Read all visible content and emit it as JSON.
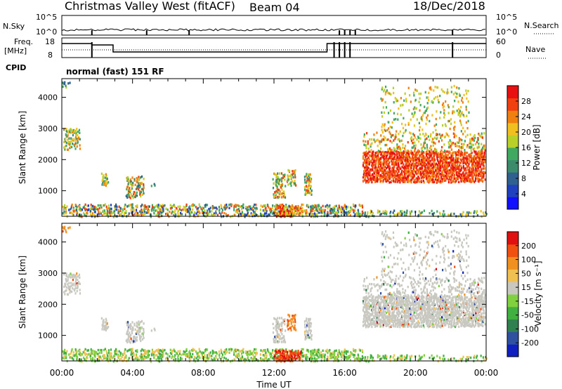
{
  "header": {
    "title": "Christmas Valley West (fitACF)",
    "beam": "Beam 04",
    "date": "18/Dec/2018"
  },
  "top_panels": {
    "nsky_label": "N.Sky",
    "nsearch_label": "N.Search",
    "nsky_ticks": [
      "10^5",
      "10^0"
    ],
    "nsearch_ticks": [
      "10^5",
      "10^0"
    ],
    "freq_label_1": "Freq.",
    "freq_label_2": "[MHz]",
    "freq_ticks": [
      "18",
      "8"
    ],
    "nave_label": "Nave",
    "nave_ticks": [
      "60",
      "0"
    ],
    "cpid_label": "CPID",
    "cpid_text": "normal (fast) 151 RF"
  },
  "chart_data": [
    {
      "type": "heatmap",
      "name": "Power",
      "ylabel": "Slant Range [km]",
      "y_ticks": [
        "1000",
        "2000",
        "3000",
        "4000"
      ],
      "x_ticks": [
        "00:00",
        "04:00",
        "08:00",
        "12:00",
        "16:00",
        "20:00",
        "00:00"
      ],
      "colorbar_label": "Power [dB]",
      "colorbar_ticks": [
        "4",
        "8",
        "12",
        "16",
        "20",
        "24",
        "28"
      ],
      "colorbar_colors": [
        "#1010ff",
        "#2040c0",
        "#306090",
        "#3c8c6c",
        "#40a860",
        "#b8d028",
        "#f0c020",
        "#f08010",
        "#f04010",
        "#e81010"
      ]
    },
    {
      "type": "heatmap",
      "name": "Velocity",
      "ylabel": "Slant Range [km]",
      "y_ticks": [
        "1000",
        "2000",
        "3000",
        "4000"
      ],
      "x_ticks": [
        "00:00",
        "04:00",
        "08:00",
        "12:00",
        "16:00",
        "20:00",
        "00:00"
      ],
      "xlabel": "Time UT",
      "colorbar_label": "Velocity [m s⁻¹]",
      "colorbar_ticks": [
        "200",
        "100",
        "50",
        "15",
        "-15",
        "-50",
        "-100",
        "-200"
      ],
      "colorbar_colors": [
        "#1020c0",
        "#3050a0",
        "#308050",
        "#40b040",
        "#80d040",
        "#c8c8c0",
        "#f0c050",
        "#f09020",
        "#f05010",
        "#e01010"
      ]
    }
  ]
}
